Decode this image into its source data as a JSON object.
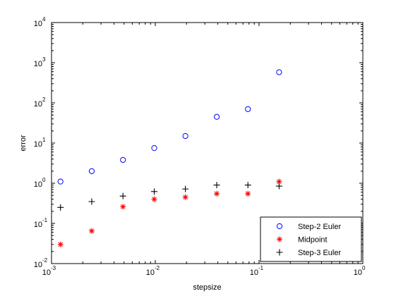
{
  "chart_data": {
    "type": "scatter",
    "xlabel": "stepsize",
    "ylabel": "error",
    "xscale": "log",
    "yscale": "log",
    "xlim": [
      0.001,
      1
    ],
    "ylim": [
      0.01,
      10000
    ],
    "x_ticks": [
      {
        "base": "10",
        "exp": "-3",
        "value": 0.001
      },
      {
        "base": "10",
        "exp": "-2",
        "value": 0.01
      },
      {
        "base": "10",
        "exp": "-1",
        "value": 0.1
      },
      {
        "base": "10",
        "exp": "0",
        "value": 1
      }
    ],
    "y_ticks": [
      {
        "base": "10",
        "exp": "-2",
        "value": 0.01
      },
      {
        "base": "10",
        "exp": "-1",
        "value": 0.1
      },
      {
        "base": "10",
        "exp": "0",
        "value": 1
      },
      {
        "base": "10",
        "exp": "1",
        "value": 10
      },
      {
        "base": "10",
        "exp": "2",
        "value": 100
      },
      {
        "base": "10",
        "exp": "3",
        "value": 1000
      },
      {
        "base": "10",
        "exp": "4",
        "value": 10000
      }
    ],
    "grid": false,
    "legend_position": "bottom-right",
    "series": [
      {
        "name": "Step-2 Euler",
        "marker": "circle",
        "color": "#0000ff",
        "x": [
          0.00122,
          0.00244,
          0.00488,
          0.00977,
          0.0195,
          0.0391,
          0.0781,
          0.156
        ],
        "y": [
          1.1,
          2.0,
          3.8,
          7.5,
          15,
          45,
          70,
          580
        ]
      },
      {
        "name": "Midpoint",
        "marker": "asterisk",
        "color": "#ff0000",
        "x": [
          0.00122,
          0.00244,
          0.00488,
          0.00977,
          0.0195,
          0.0391,
          0.0781,
          0.156
        ],
        "y": [
          0.03,
          0.065,
          0.26,
          0.4,
          0.45,
          0.55,
          0.55,
          1.1
        ]
      },
      {
        "name": "Step-3 Euler",
        "marker": "plus",
        "color": "#000000",
        "x": [
          0.00122,
          0.00244,
          0.00488,
          0.00977,
          0.0195,
          0.0391,
          0.0781,
          0.156
        ],
        "y": [
          0.25,
          0.35,
          0.48,
          0.62,
          0.72,
          0.9,
          0.9,
          0.85
        ]
      }
    ]
  }
}
